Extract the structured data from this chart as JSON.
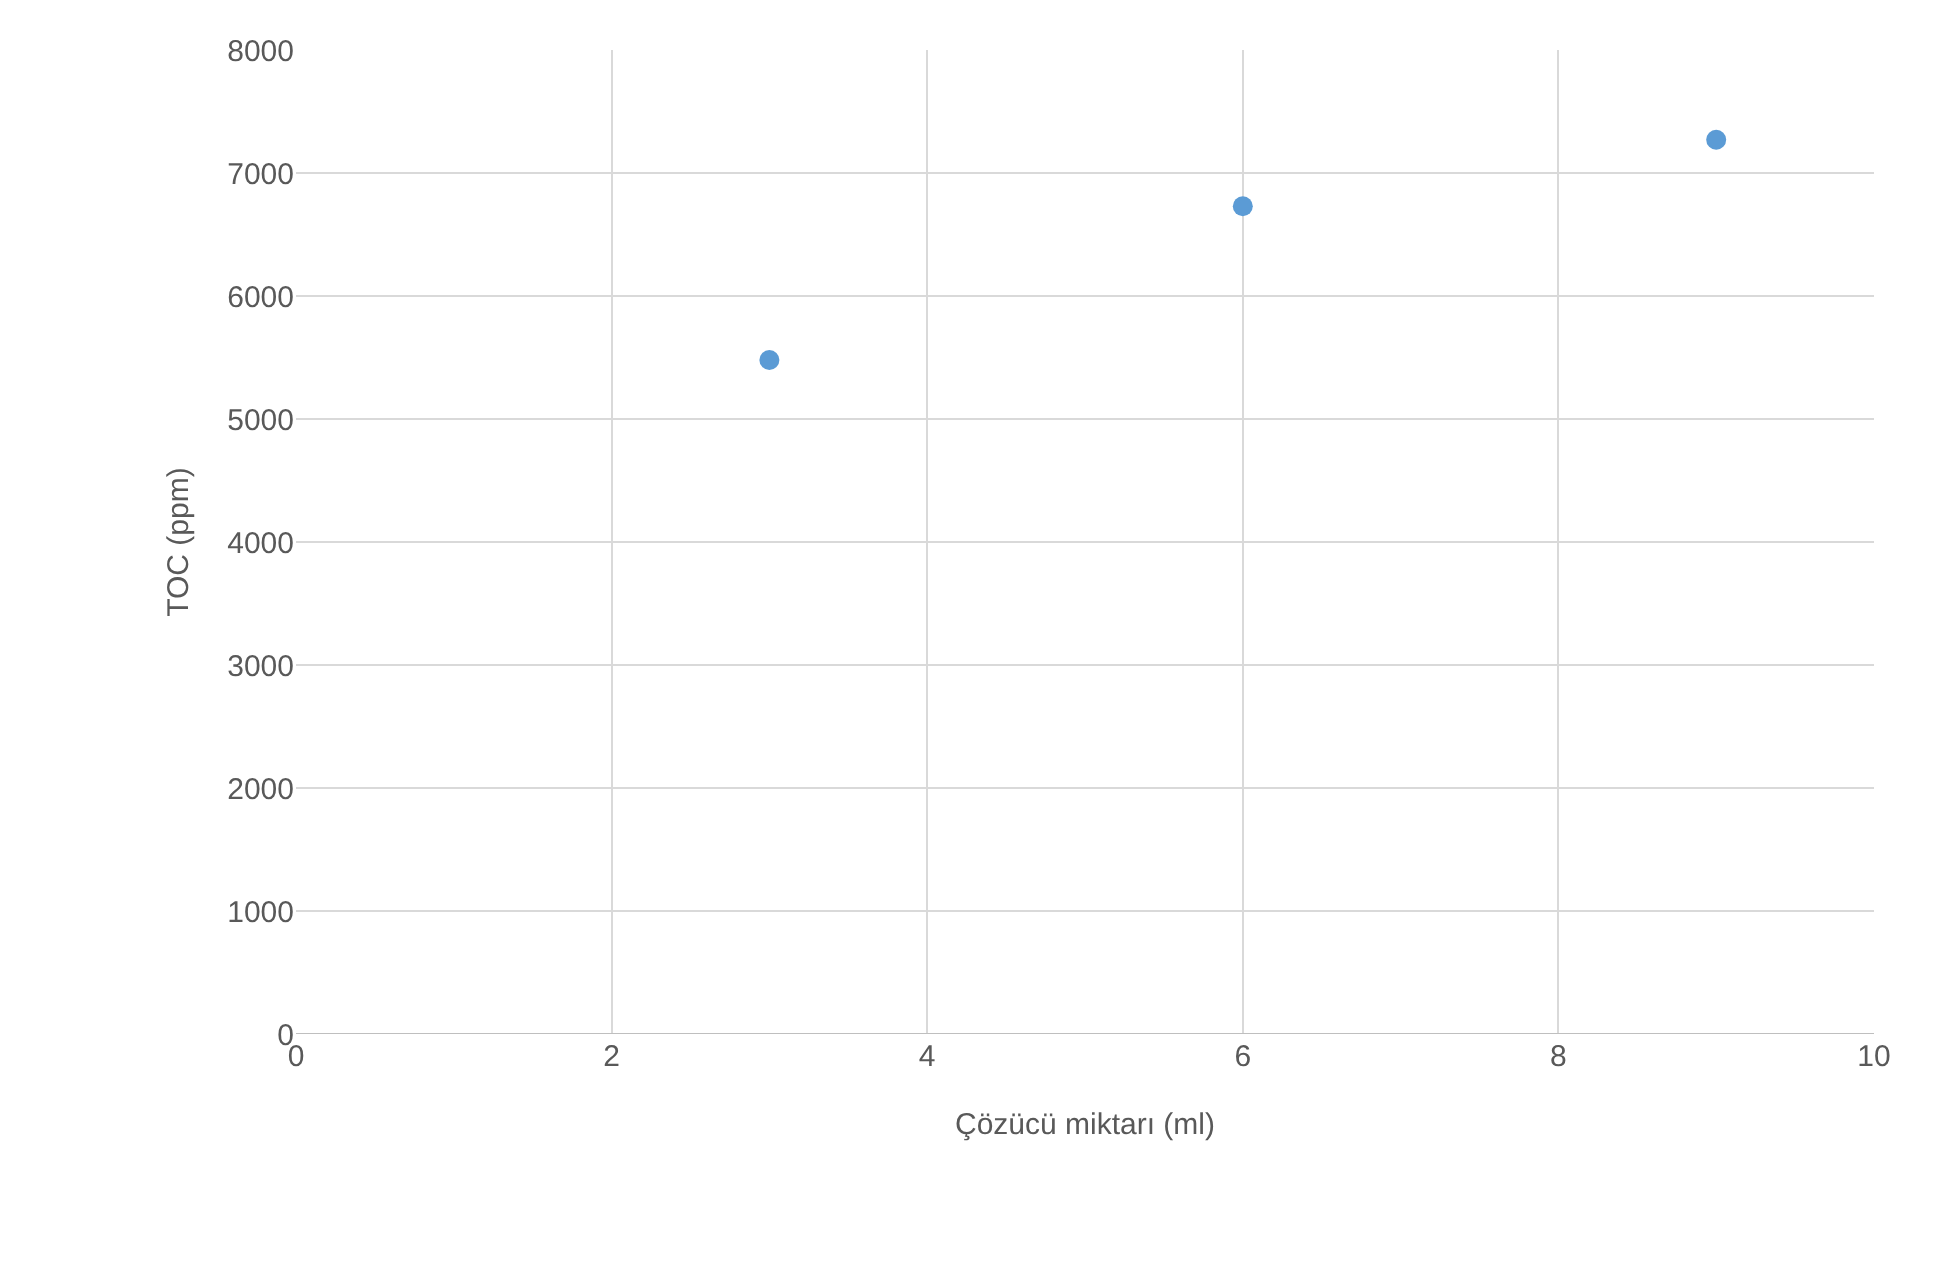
{
  "chart_data": {
    "type": "scatter",
    "xlabel": "Çözücü miktarı (ml)",
    "ylabel": "TOC (ppm)",
    "x": [
      3,
      6,
      9
    ],
    "series": [
      {
        "color": "#5b9bd5",
        "values": [
          5480,
          6730,
          7270
        ]
      }
    ],
    "xlim": [
      0,
      10
    ],
    "xticks": [
      0,
      2,
      4,
      6,
      8,
      10
    ],
    "ylim": [
      0,
      8000
    ],
    "yticks": [
      0,
      1000,
      2000,
      3000,
      4000,
      5000,
      6000,
      7000,
      8000
    ],
    "grid": true,
    "marker": "circle"
  }
}
